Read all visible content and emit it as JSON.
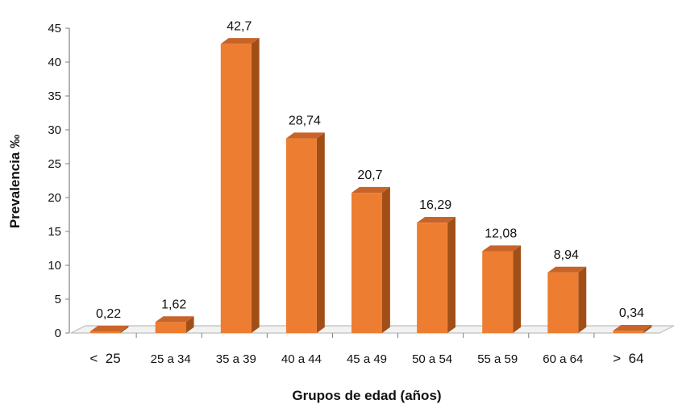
{
  "chart_data": {
    "type": "bar",
    "title": "",
    "xlabel": "Grupos de edad (años)",
    "ylabel": "Prevalencia ‰",
    "categories": [
      "<  25",
      "25 a 34",
      "35 a 39",
      "40 a 44",
      "45 a 49",
      "50 a 54",
      "55 a 59",
      "60 a 64",
      ">  64"
    ],
    "values": [
      0.22,
      1.62,
      42.7,
      28.74,
      20.7,
      16.29,
      12.08,
      8.94,
      0.34
    ],
    "value_labels": [
      "0,22",
      "1,62",
      "42,7",
      "28,74",
      "20,7",
      "16,29",
      "12,08",
      "8,94",
      "0,34"
    ],
    "ylim": [
      0,
      45
    ],
    "yticks": [
      0,
      5,
      10,
      15,
      20,
      25,
      30,
      35,
      40,
      45
    ],
    "grid": false,
    "legend": "none",
    "colors": {
      "front": "#ED7D31",
      "side": "#A24F17",
      "top": "#C8642A",
      "floor": "#F2F2F2",
      "axis": "#7F7F7F"
    }
  }
}
